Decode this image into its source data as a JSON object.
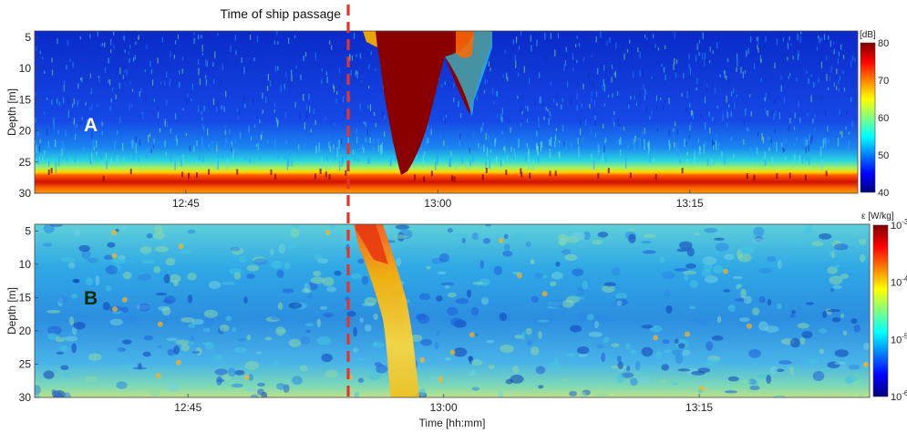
{
  "annotation": "Time of ship passage",
  "x_axis_label": "Time [hh:mm]",
  "chart_data": [
    {
      "type": "heatmap",
      "panel_label": "A",
      "ylabel": "Depth [m]",
      "yticks": [
        "5",
        "10",
        "15",
        "20",
        "25",
        "30"
      ],
      "ylim": [
        4,
        30
      ],
      "xticks": [
        "12:45",
        "13:00",
        "13:15"
      ],
      "x_range": [
        "12:36",
        "13:25"
      ],
      "colorbar": {
        "unit": "[dB]",
        "ticks": [
          "40",
          "50",
          "60",
          "70",
          "80"
        ],
        "range": [
          40,
          80
        ],
        "colormap": "jet"
      },
      "features": {
        "seabed_band_depth_m": [
          25.5,
          29
        ],
        "ship_wake_time": "12:56-12:59",
        "ship_wake_max_depth_m": 27
      }
    },
    {
      "type": "heatmap",
      "panel_label": "B",
      "ylabel": "Depth [m]",
      "yticks": [
        "5",
        "10",
        "15",
        "20",
        "25",
        "30"
      ],
      "ylim": [
        4,
        30
      ],
      "xticks": [
        "12:45",
        "13:00",
        "13:15"
      ],
      "x_range": [
        "12:36",
        "13:25"
      ],
      "colorbar": {
        "unit": "ε [W/kg]",
        "ticks": [
          "10",
          "10",
          "10",
          "10"
        ],
        "exponents": [
          "-3",
          "-4",
          "-5",
          "-6"
        ],
        "range_log10": [
          -6,
          -3
        ],
        "colormap": "jet",
        "scale": "log"
      },
      "features": {
        "turbulent_wake_time": "12:56-12:59",
        "turbulent_wake_max_depth_m": 30
      }
    }
  ],
  "ship_passage_time": "12:55",
  "colors": {
    "marker": "#e8332a",
    "panel_label_a": "#ffffff",
    "panel_label_b": "#0a2a0a"
  }
}
